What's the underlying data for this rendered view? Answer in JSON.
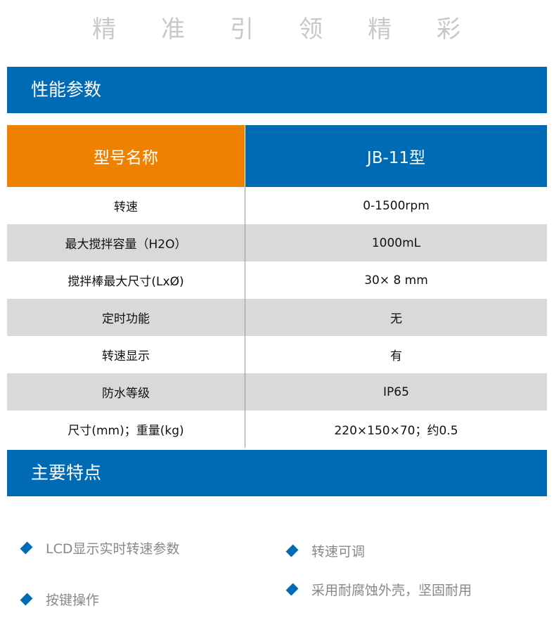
{
  "slogan": [
    "精",
    "准",
    "引",
    "领",
    "精",
    "彩"
  ],
  "section1_title": "性能参数",
  "table": {
    "header": [
      "型号名称",
      "JB-11型"
    ],
    "rows": [
      [
        "转速",
        "0-1500rpm"
      ],
      [
        "最大搅拌容量（H2O）",
        "1000mL"
      ],
      [
        "搅拌棒最大尺寸(LxØ)",
        "30× 8 mm"
      ],
      [
        "定时功能",
        "无"
      ],
      [
        "转速显示",
        "有"
      ],
      [
        "防水等级",
        "IP65"
      ],
      [
        "尺寸(mm)；重量(kg)",
        "220×150×70；约0.5"
      ]
    ]
  },
  "section2_title": "主要特点",
  "features": [
    "LCD显示实时转速参数",
    "转速可调",
    "按键操作",
    "采用耐腐蚀外壳，坚固耐用"
  ],
  "colors": {
    "blue": "#006bb5",
    "orange": "#ee8200"
  }
}
